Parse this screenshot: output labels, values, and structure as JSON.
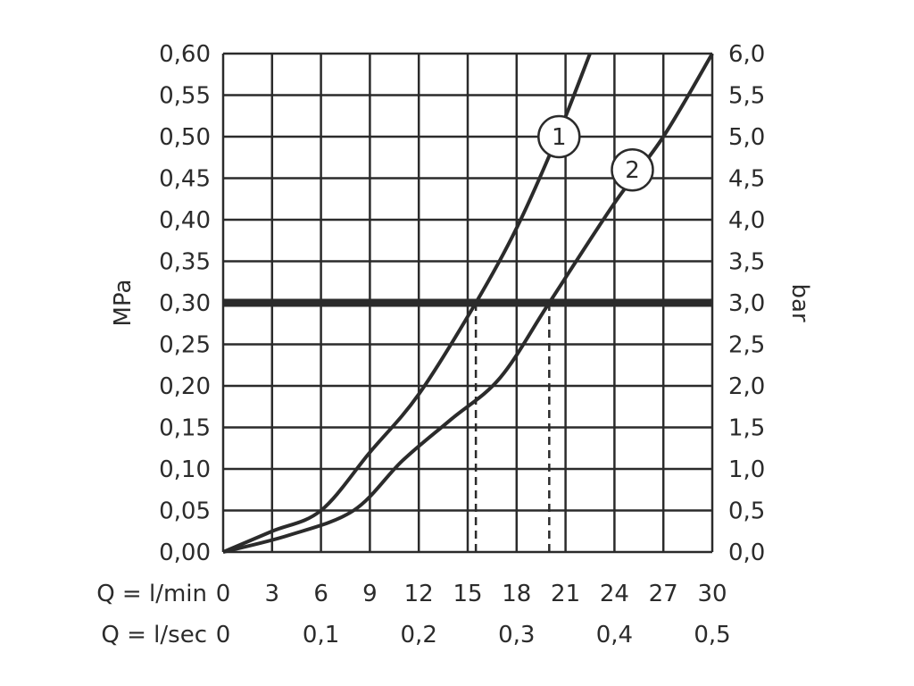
{
  "chart_data": {
    "type": "line",
    "left_axis": {
      "label": "MPa",
      "ticks": [
        "0,00",
        "0,05",
        "0,10",
        "0,15",
        "0,20",
        "0,25",
        "0,30",
        "0,35",
        "0,40",
        "0,45",
        "0,50",
        "0,55",
        "0,60"
      ],
      "ylim": [
        0,
        0.6
      ]
    },
    "right_axis": {
      "label": "bar",
      "ticks": [
        "0,0",
        "0,5",
        "1,0",
        "1,5",
        "2,0",
        "2,5",
        "3,0",
        "3,5",
        "4,0",
        "4,5",
        "5,0",
        "5,5",
        "6,0"
      ],
      "ylim": [
        0,
        6
      ]
    },
    "x_axis": {
      "xlim": [
        0,
        30
      ],
      "rows": [
        {
          "label": "Q = l/min",
          "ticks": [
            {
              "x": 0,
              "text": "0"
            },
            {
              "x": 3,
              "text": "3"
            },
            {
              "x": 6,
              "text": "6"
            },
            {
              "x": 9,
              "text": "9"
            },
            {
              "x": 12,
              "text": "12"
            },
            {
              "x": 15,
              "text": "15"
            },
            {
              "x": 18,
              "text": "18"
            },
            {
              "x": 21,
              "text": "21"
            },
            {
              "x": 24,
              "text": "24"
            },
            {
              "x": 27,
              "text": "27"
            },
            {
              "x": 30,
              "text": "30"
            }
          ]
        },
        {
          "label": "Q = l/sec",
          "ticks": [
            {
              "x": 0,
              "text": "0"
            },
            {
              "x": 6,
              "text": "0,1"
            },
            {
              "x": 12,
              "text": "0,2"
            },
            {
              "x": 18,
              "text": "0,3"
            },
            {
              "x": 24,
              "text": "0,4"
            },
            {
              "x": 30,
              "text": "0,5"
            }
          ]
        }
      ]
    },
    "grid": true,
    "reference_line": {
      "y": 0.3
    },
    "dashed_markers": [
      {
        "x": 15.5,
        "y": 0.3
      },
      {
        "x": 20.0,
        "y": 0.3
      }
    ],
    "series": [
      {
        "name": "1",
        "x": [
          0,
          3,
          6,
          9,
          12,
          15.5,
          18,
          20.5,
          22.5
        ],
        "y": [
          0,
          0.025,
          0.05,
          0.12,
          0.19,
          0.3,
          0.39,
          0.5,
          0.6
        ]
      },
      {
        "name": "2",
        "x": [
          0,
          4,
          8,
          11,
          14,
          17,
          20,
          24,
          27,
          30
        ],
        "y": [
          0,
          0.02,
          0.05,
          0.11,
          0.16,
          0.21,
          0.3,
          0.42,
          0.5,
          0.6
        ]
      }
    ],
    "colors": {
      "line": "#2b2b2b",
      "grid": "#2b2b2b",
      "background": "#ffffff"
    }
  }
}
